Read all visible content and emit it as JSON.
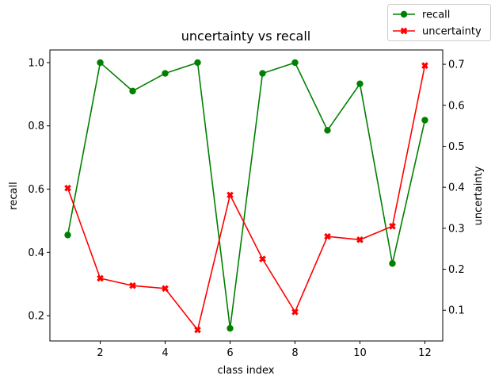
{
  "chart_data": {
    "type": "line",
    "title": "uncertainty vs recall",
    "xlabel": "class index",
    "ylabel_left": "recall",
    "ylabel_right": "uncertainty",
    "x": [
      1,
      2,
      3,
      4,
      5,
      6,
      7,
      8,
      9,
      10,
      11,
      12
    ],
    "xlim": [
      0.45,
      12.55
    ],
    "ylim_left": [
      0.12,
      1.04
    ],
    "ylim_right": [
      0.025,
      0.735
    ],
    "x_ticks": [
      2,
      4,
      6,
      8,
      10,
      12
    ],
    "x_tick_labels": [
      "2",
      "4",
      "6",
      "8",
      "10",
      "12"
    ],
    "y_left_ticks": [
      0.2,
      0.4,
      0.6,
      0.8,
      1.0
    ],
    "y_left_tick_labels": [
      "0.2",
      "0.4",
      "0.6",
      "0.8",
      "1.0"
    ],
    "y_right_ticks": [
      0.1,
      0.2,
      0.3,
      0.4,
      0.5,
      0.6,
      0.7
    ],
    "y_right_tick_labels": [
      "0.1",
      "0.2",
      "0.3",
      "0.4",
      "0.5",
      "0.6",
      "0.7"
    ],
    "grid": false,
    "legend_position": "top-right",
    "series": [
      {
        "name": "recall",
        "axis": "left",
        "color": "#008000",
        "marker": "circle",
        "values": [
          0.455,
          1.0,
          0.91,
          0.966,
          1.0,
          0.16,
          0.966,
          1.0,
          0.786,
          0.933,
          0.365,
          0.818
        ]
      },
      {
        "name": "uncertainty",
        "axis": "right",
        "color": "#ff0000",
        "marker": "x",
        "values": [
          0.398,
          0.178,
          0.16,
          0.153,
          0.052,
          0.381,
          0.225,
          0.096,
          0.28,
          0.272,
          0.305,
          0.697
        ]
      }
    ]
  }
}
